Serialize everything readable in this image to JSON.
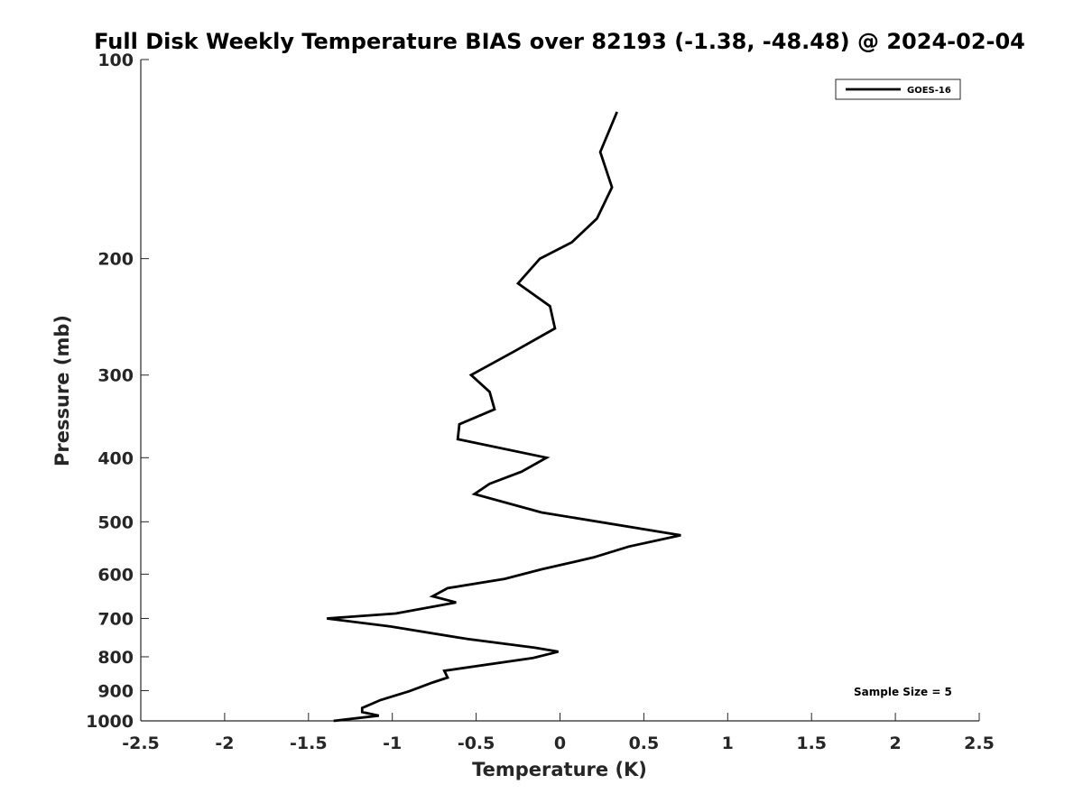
{
  "chart_data": {
    "type": "line",
    "title": "Full Disk Weekly Temperature BIAS over 82193 (-1.38, -48.48) @ 2024-02-04",
    "xlabel": "Temperature (K)",
    "ylabel": "Pressure (mb)",
    "xlim": [
      -2.5,
      2.5
    ],
    "ylim": [
      100,
      1000
    ],
    "yscale": "log",
    "y_reversed": true,
    "grid": false,
    "x_ticks": [
      -2.5,
      -2,
      -1.5,
      -1,
      -0.5,
      0,
      0.5,
      1,
      1.5,
      2,
      2.5
    ],
    "x_tick_labels": [
      "-2.5",
      "-2",
      "-1.5",
      "-1",
      "-0.5",
      "0",
      "0.5",
      "1",
      "1.5",
      "2",
      "2.5"
    ],
    "y_ticks": [
      100,
      200,
      300,
      400,
      500,
      600,
      700,
      800,
      900,
      1000
    ],
    "y_tick_labels": [
      "100",
      "200",
      "300",
      "400",
      "500",
      "600",
      "700",
      "800",
      "900",
      "1000"
    ],
    "legend_position": "top-right",
    "annotation": "Sample Size = 5",
    "series": [
      {
        "name": "GOES-16",
        "color": "#000000",
        "points": [
          {
            "x": 0.34,
            "p": 120
          },
          {
            "x": 0.24,
            "p": 138
          },
          {
            "x": 0.31,
            "p": 156
          },
          {
            "x": 0.22,
            "p": 174
          },
          {
            "x": 0.07,
            "p": 189
          },
          {
            "x": -0.12,
            "p": 200
          },
          {
            "x": -0.25,
            "p": 218
          },
          {
            "x": -0.06,
            "p": 236
          },
          {
            "x": -0.03,
            "p": 255
          },
          {
            "x": -0.27,
            "p": 276
          },
          {
            "x": -0.53,
            "p": 300
          },
          {
            "x": -0.42,
            "p": 318
          },
          {
            "x": -0.39,
            "p": 338
          },
          {
            "x": -0.6,
            "p": 356
          },
          {
            "x": -0.61,
            "p": 375
          },
          {
            "x": -0.08,
            "p": 400
          },
          {
            "x": -0.23,
            "p": 420
          },
          {
            "x": -0.42,
            "p": 438
          },
          {
            "x": -0.51,
            "p": 454
          },
          {
            "x": -0.11,
            "p": 484
          },
          {
            "x": 0.72,
            "p": 524
          },
          {
            "x": 0.41,
            "p": 545
          },
          {
            "x": 0.2,
            "p": 566
          },
          {
            "x": -0.11,
            "p": 590
          },
          {
            "x": -0.33,
            "p": 610
          },
          {
            "x": -0.67,
            "p": 630
          },
          {
            "x": -0.76,
            "p": 648
          },
          {
            "x": -0.62,
            "p": 662
          },
          {
            "x": -0.98,
            "p": 688
          },
          {
            "x": -1.39,
            "p": 700
          },
          {
            "x": -1.01,
            "p": 720
          },
          {
            "x": -0.55,
            "p": 752
          },
          {
            "x": -0.15,
            "p": 775
          },
          {
            "x": -0.01,
            "p": 786
          },
          {
            "x": -0.16,
            "p": 803
          },
          {
            "x": -0.69,
            "p": 840
          },
          {
            "x": -0.67,
            "p": 860
          },
          {
            "x": -0.76,
            "p": 875
          },
          {
            "x": -0.9,
            "p": 902
          },
          {
            "x": -1.07,
            "p": 930
          },
          {
            "x": -1.18,
            "p": 956
          },
          {
            "x": -1.18,
            "p": 970
          },
          {
            "x": -1.08,
            "p": 982
          },
          {
            "x": -1.35,
            "p": 1000
          }
        ]
      }
    ]
  }
}
